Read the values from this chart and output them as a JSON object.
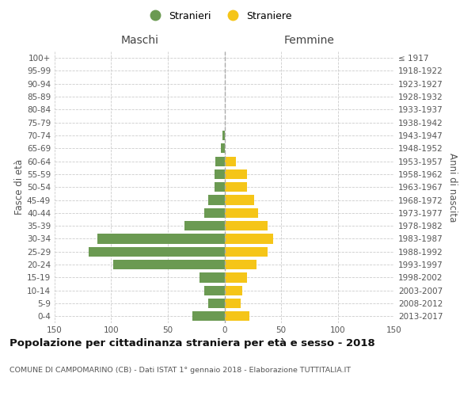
{
  "age_groups": [
    "100+",
    "95-99",
    "90-94",
    "85-89",
    "80-84",
    "75-79",
    "70-74",
    "65-69",
    "60-64",
    "55-59",
    "50-54",
    "45-49",
    "40-44",
    "35-39",
    "30-34",
    "25-29",
    "20-24",
    "15-19",
    "10-14",
    "5-9",
    "0-4"
  ],
  "birth_years": [
    "≤ 1917",
    "1918-1922",
    "1923-1927",
    "1928-1932",
    "1933-1937",
    "1938-1942",
    "1943-1947",
    "1948-1952",
    "1953-1957",
    "1958-1962",
    "1963-1967",
    "1968-1972",
    "1973-1977",
    "1978-1982",
    "1983-1987",
    "1988-1992",
    "1993-1997",
    "1998-2002",
    "2003-2007",
    "2008-2012",
    "2013-2017"
  ],
  "maschi": [
    0,
    0,
    0,
    0,
    0,
    0,
    2,
    3,
    8,
    9,
    9,
    14,
    18,
    35,
    112,
    120,
    98,
    22,
    18,
    14,
    28
  ],
  "femmine": [
    0,
    0,
    0,
    0,
    0,
    0,
    0,
    0,
    10,
    20,
    20,
    26,
    30,
    38,
    43,
    38,
    28,
    20,
    16,
    14,
    22
  ],
  "male_color": "#6b9a52",
  "female_color": "#f5c518",
  "center_line_color": "#aaaaaa",
  "grid_color": "#cccccc",
  "bg_color": "#ffffff",
  "title": "Popolazione per cittadinanza straniera per età e sesso - 2018",
  "subtitle": "COMUNE DI CAMPOMARINO (CB) - Dati ISTAT 1° gennaio 2018 - Elaborazione TUTTITALIA.IT",
  "legend_stranieri": "Stranieri",
  "legend_straniere": "Straniere",
  "xlabel_left": "Maschi",
  "xlabel_right": "Femmine",
  "ylabel_left": "Fasce di età",
  "ylabel_right": "Anni di nascita",
  "xlim": 150,
  "xticks": [
    -150,
    -100,
    -50,
    0,
    50,
    100,
    150
  ]
}
